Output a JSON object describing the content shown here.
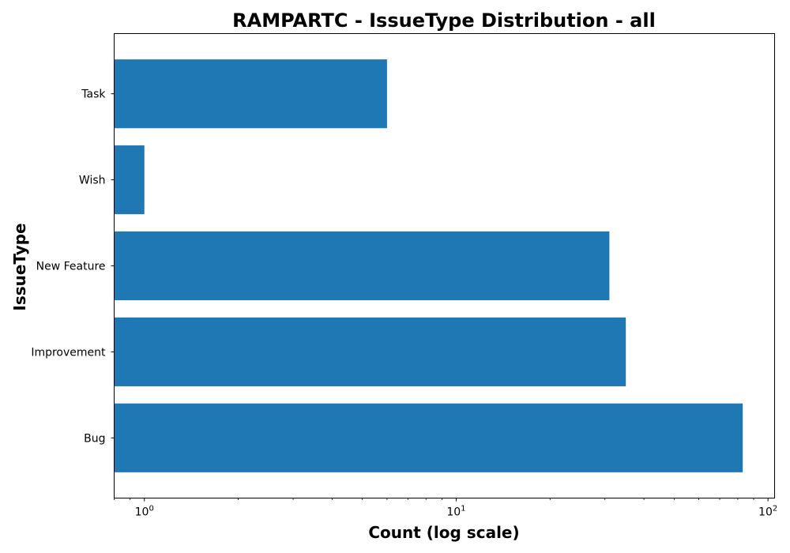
{
  "chart_data": {
    "type": "bar",
    "orientation": "horizontal",
    "title": "RAMPARTC - IssueType Distribution - all",
    "xlabel": "Count (log scale)",
    "ylabel": "IssueType",
    "x_scale": "log",
    "xlim": [
      0.8,
      105
    ],
    "categories": [
      "Bug",
      "Improvement",
      "New Feature",
      "Wish",
      "Task"
    ],
    "values": [
      83,
      35,
      31,
      1,
      6
    ],
    "x_ticks": [
      {
        "value": 1,
        "base": "10",
        "exp": "0"
      },
      {
        "value": 10,
        "base": "10",
        "exp": "1"
      },
      {
        "value": 100,
        "base": "10",
        "exp": "2"
      }
    ],
    "bar_color": "#1f77b4",
    "grid": false
  }
}
